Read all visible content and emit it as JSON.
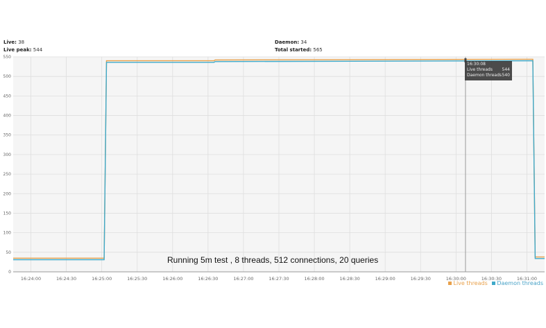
{
  "stats": {
    "live_label": "Live:",
    "live_value": "38",
    "live_peak_label": "Live peak:",
    "live_peak_value": "544",
    "daemon_label": "Daemon:",
    "daemon_value": "34",
    "total_started_label": "Total started:",
    "total_started_value": "565"
  },
  "tooltip": {
    "time": "16:30:08",
    "rows": [
      {
        "label": "Live threads",
        "value": "544"
      },
      {
        "label": "Daemon threads",
        "value": "540"
      }
    ]
  },
  "annotation": "Running 5m test , 8 threads, 512 connections, 20 queries",
  "legend": [
    {
      "label": "Live threads",
      "color": "#e8a04a"
    },
    {
      "label": "Daemon threads",
      "color": "#3fa9c9"
    }
  ],
  "chart_data": {
    "type": "line",
    "title": "",
    "xlabel": "",
    "ylabel": "",
    "ylim": [
      0,
      550
    ],
    "yticks": [
      0,
      50,
      100,
      150,
      200,
      250,
      300,
      350,
      400,
      450,
      500,
      550
    ],
    "xlim": [
      "16:23:45",
      "16:31:15"
    ],
    "xticks": [
      "16:24:00",
      "16:24:30",
      "16:25:00",
      "16:25:30",
      "16:26:00",
      "16:26:30",
      "16:27:00",
      "16:27:30",
      "16:28:00",
      "16:28:30",
      "16:29:00",
      "16:29:30",
      "16:30:00",
      "16:30:30",
      "16:31:00"
    ],
    "grid": true,
    "legend_position": "bottom-right",
    "series": [
      {
        "name": "Live threads",
        "color": "#e8a04a",
        "points": [
          [
            "16:23:45",
            35
          ],
          [
            "16:25:02",
            35
          ],
          [
            "16:25:04",
            540
          ],
          [
            "16:26:35",
            540
          ],
          [
            "16:26:36",
            542
          ],
          [
            "16:31:05",
            544
          ],
          [
            "16:31:07",
            38
          ],
          [
            "16:31:15",
            38
          ]
        ]
      },
      {
        "name": "Daemon threads",
        "color": "#3fa9c9",
        "points": [
          [
            "16:23:45",
            31
          ],
          [
            "16:25:02",
            31
          ],
          [
            "16:25:04",
            536
          ],
          [
            "16:26:35",
            536
          ],
          [
            "16:26:36",
            538
          ],
          [
            "16:31:05",
            540
          ],
          [
            "16:31:07",
            34
          ],
          [
            "16:31:15",
            34
          ]
        ]
      }
    ],
    "marker_time": "16:30:08"
  }
}
